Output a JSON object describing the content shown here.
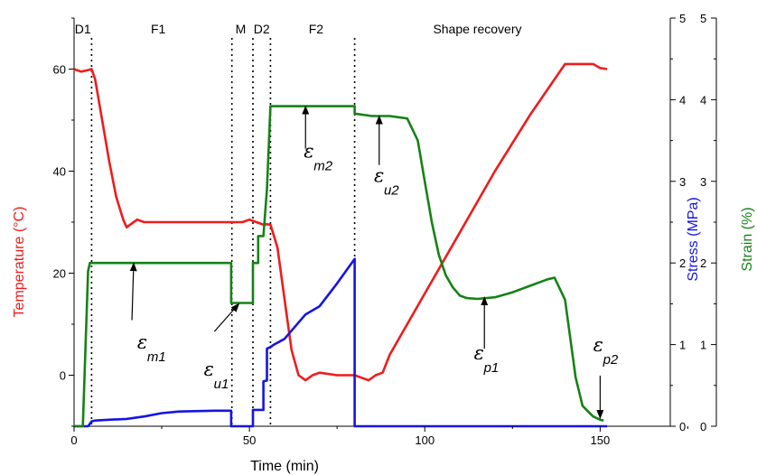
{
  "chart_data": {
    "type": "line",
    "xlabel": "Time (min)",
    "y_left_label": "Temperature (°C)",
    "y_right_stress_label": "Stress (MPa)",
    "y_right_strain_label": "Strain (%)",
    "xlim": [
      0,
      170
    ],
    "ylim_temperature": [
      -10,
      70
    ],
    "ylim_stress": [
      0,
      5
    ],
    "ylim_strain": [
      0,
      5
    ],
    "x_ticks": [
      "0",
      "50",
      "100",
      "150"
    ],
    "temperature_ticks": [
      "0",
      "20",
      "40",
      "60"
    ],
    "stress_ticks": [
      "0",
      "1",
      "2",
      "3",
      "4",
      "5"
    ],
    "strain_ticks": [
      "0",
      "1",
      "2",
      "3",
      "4",
      "5"
    ],
    "colors": {
      "temperature": "#ee1c1c",
      "stress": "#1515e0",
      "strain": "#168216"
    },
    "phase_boundaries": [
      5,
      45,
      51,
      56,
      80
    ],
    "phases": [
      {
        "label": "D1",
        "x": 2.5
      },
      {
        "label": "F1",
        "x": 24
      },
      {
        "label": "M",
        "x": 47.5
      },
      {
        "label": "D2",
        "x": 53.5
      },
      {
        "label": "F2",
        "x": 69
      },
      {
        "label": "Shape recovery",
        "x": 115
      }
    ],
    "series": [
      {
        "name": "Temperature",
        "axis": "temperature",
        "x": [
          0,
          2,
          4,
          5,
          6,
          8,
          10,
          12,
          14,
          15,
          16,
          18,
          20,
          25,
          30,
          35,
          40,
          45,
          48,
          50,
          52,
          54,
          55,
          56,
          58,
          60,
          62,
          64,
          66,
          68,
          70,
          75,
          80,
          82,
          84,
          86,
          88,
          90,
          100,
          110,
          120,
          130,
          140,
          148,
          150,
          152
        ],
        "y": [
          60,
          59.5,
          59.8,
          60,
          58,
          50,
          42,
          35,
          30.5,
          29,
          29.5,
          30.5,
          30,
          30,
          30,
          30,
          30,
          30,
          30,
          30.5,
          30,
          29.5,
          29.6,
          29.5,
          25,
          15,
          5,
          0,
          -1,
          0,
          0.5,
          0,
          0,
          -0.5,
          -1,
          0,
          0.5,
          4,
          16,
          28,
          40,
          51,
          61,
          61,
          60.2,
          60
        ]
      },
      {
        "name": "Stress",
        "axis": "stress",
        "x": [
          0,
          3,
          4,
          5,
          6,
          10,
          15,
          20,
          25,
          30,
          40,
          44.8,
          44.8,
          51,
          51,
          54,
          54,
          55,
          55,
          56,
          57,
          60,
          63,
          66,
          70,
          75,
          80,
          80,
          152
        ],
        "y": [
          0,
          0,
          0,
          0.06,
          0.07,
          0.08,
          0.09,
          0.12,
          0.16,
          0.18,
          0.19,
          0.19,
          0,
          0,
          0.2,
          0.2,
          0.55,
          0.56,
          0.95,
          0.97,
          1,
          1.07,
          1.22,
          1.37,
          1.47,
          1.75,
          2.05,
          0,
          0
        ]
      },
      {
        "name": "Strain",
        "axis": "strain",
        "x": [
          0,
          2.5,
          4,
          4.5,
          6,
          10,
          20,
          30,
          44.8,
          44.8,
          50,
          51,
          51,
          52.5,
          52.5,
          54,
          55,
          56,
          60,
          70,
          80,
          80,
          85,
          90,
          95,
          98,
          100,
          102,
          104,
          106,
          108,
          110,
          112,
          115,
          120,
          125,
          130,
          135,
          137,
          140,
          143,
          145,
          148,
          150,
          151
        ],
        "y": [
          0,
          0,
          1.9,
          2,
          2,
          2,
          2,
          2,
          2,
          1.51,
          1.51,
          1.51,
          2,
          2,
          2.33,
          2.33,
          2.9,
          3.92,
          3.92,
          3.92,
          3.92,
          3.83,
          3.8,
          3.8,
          3.77,
          3.5,
          3.0,
          2.5,
          2.1,
          1.85,
          1.7,
          1.6,
          1.57,
          1.56,
          1.58,
          1.64,
          1.72,
          1.8,
          1.82,
          1.55,
          0.6,
          0.25,
          0.12,
          0.08,
          0.07
        ]
      }
    ],
    "annotations": [
      {
        "symbol": "ε",
        "sub": "m1",
        "text_at": [
          18,
          0.95
        ],
        "arrow_from": [
          16.5,
          1.3
        ],
        "arrow_to": [
          17,
          2.0
        ]
      },
      {
        "symbol": "ε",
        "sub": "u1",
        "text_at": [
          37,
          0.62
        ],
        "arrow_from": [
          40,
          1.16
        ],
        "arrow_to": [
          47,
          1.5
        ]
      },
      {
        "symbol": "ε",
        "sub": "m2",
        "text_at": [
          65.5,
          3.29
        ],
        "arrow_from": [
          66,
          3.4
        ],
        "arrow_to": [
          66,
          3.92
        ]
      },
      {
        "symbol": "ε",
        "sub": "u2",
        "text_at": [
          85.5,
          2.99
        ],
        "arrow_from": [
          87,
          3.2
        ],
        "arrow_to": [
          87,
          3.8
        ]
      },
      {
        "symbol": "ε",
        "sub": "p1",
        "text_at": [
          114,
          0.82
        ],
        "arrow_from": [
          117,
          0.95
        ],
        "arrow_to": [
          117,
          1.58
        ]
      },
      {
        "symbol": "ε",
        "sub": "p2",
        "text_at": [
          148,
          0.92
        ],
        "arrow_from": [
          150,
          0.62
        ],
        "arrow_to": [
          150,
          0.1
        ]
      }
    ]
  }
}
